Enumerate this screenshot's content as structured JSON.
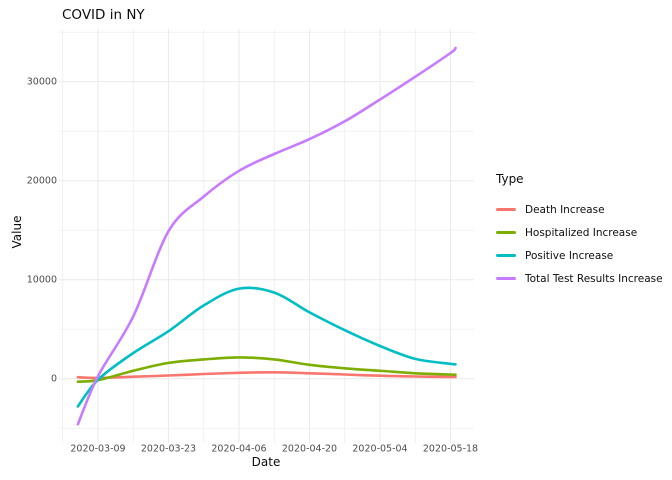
{
  "title": "COVID in NY",
  "chart_data": {
    "type": "line",
    "title": "COVID in NY",
    "xlabel": "Date",
    "ylabel": "Value",
    "grid": true,
    "legend_title": "Type",
    "legend_position": "right",
    "x_dates": [
      "2020-03-05",
      "2020-03-09",
      "2020-03-16",
      "2020-03-23",
      "2020-03-30",
      "2020-04-06",
      "2020-04-13",
      "2020-04-20",
      "2020-04-27",
      "2020-05-04",
      "2020-05-11",
      "2020-05-18",
      "2020-05-19"
    ],
    "x_days": [
      -4,
      0,
      7,
      14,
      21,
      28,
      35,
      42,
      49,
      56,
      63,
      70,
      71
    ],
    "series": [
      {
        "name": "Death Increase",
        "color": "#F8766D",
        "values": [
          150,
          80,
          200,
          320,
          470,
          600,
          650,
          550,
          420,
          300,
          220,
          180,
          175
        ]
      },
      {
        "name": "Hospitalized Increase",
        "color": "#7CAE00",
        "values": [
          -300,
          -150,
          800,
          1600,
          1950,
          2150,
          1950,
          1400,
          1050,
          800,
          550,
          420,
          400
        ]
      },
      {
        "name": "Positive Increase",
        "color": "#00BFC4",
        "values": [
          -2800,
          -100,
          2600,
          4800,
          7400,
          9100,
          8700,
          6700,
          4900,
          3300,
          2000,
          1500,
          1450
        ]
      },
      {
        "name": "Total Test Results Increase",
        "color": "#C77CFF",
        "values": [
          -4600,
          250,
          6300,
          14900,
          18400,
          21000,
          22700,
          24200,
          26000,
          28200,
          30500,
          32900,
          33400
        ]
      }
    ],
    "x_ticks": {
      "labels": [
        "2020-03-09",
        "2020-03-23",
        "2020-04-06",
        "2020-04-20",
        "2020-05-04",
        "2020-05-18"
      ],
      "days": [
        0,
        14,
        28,
        42,
        56,
        70
      ]
    },
    "x_minor_days": [
      -7,
      7,
      21,
      35,
      49,
      63
    ],
    "y_ticks": {
      "labels": [
        "0",
        "10000",
        "20000",
        "30000"
      ],
      "values": [
        0,
        10000,
        20000,
        30000
      ]
    },
    "y_minor_values": [
      -5000,
      5000,
      15000,
      25000,
      35000
    ],
    "ylim": [
      -6500,
      35300
    ],
    "grid_color": "#ebebeb",
    "background_color": "#ffffff"
  }
}
